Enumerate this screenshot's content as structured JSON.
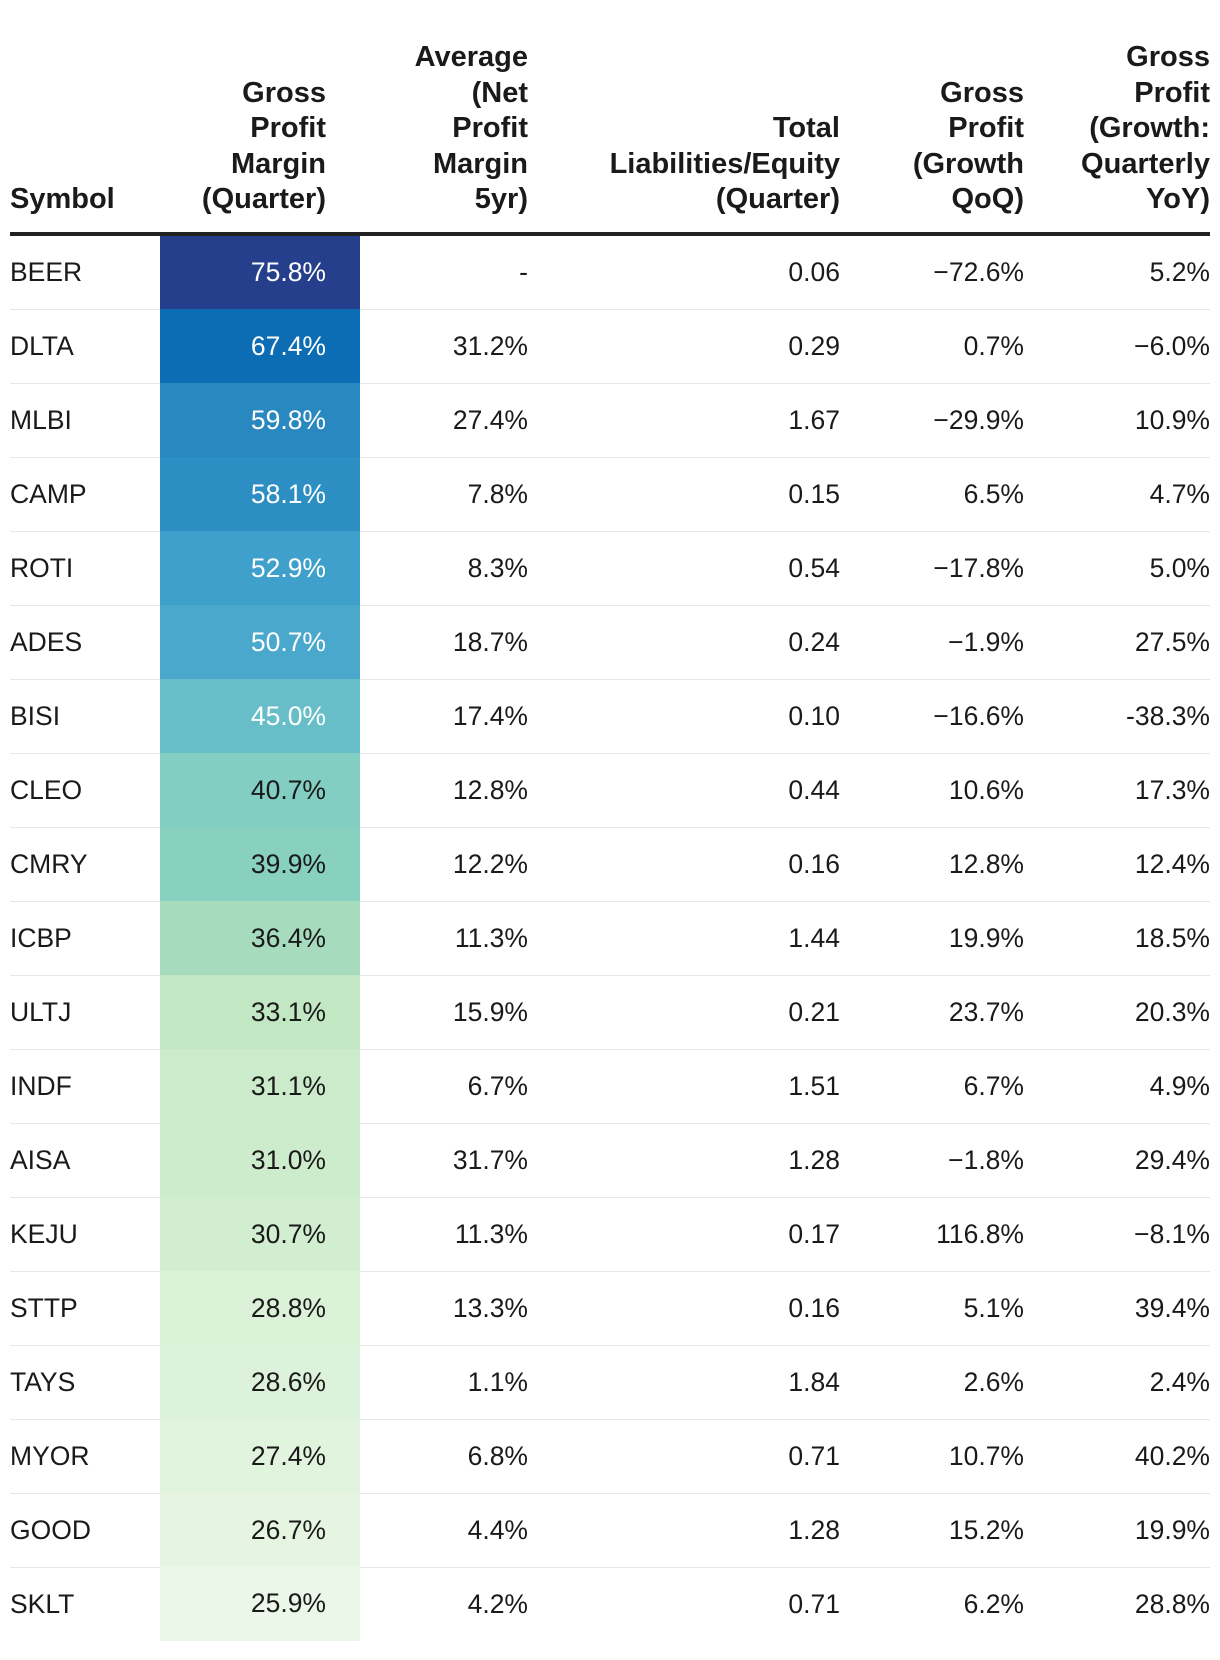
{
  "chart_data": {
    "type": "table",
    "columns": [
      {
        "key": "symbol",
        "label": "Symbol"
      },
      {
        "key": "gpm",
        "label": "Gross Profit Margin (Quarter)"
      },
      {
        "key": "avg_npm",
        "label": "Average (Net Profit Margin 5yr)"
      },
      {
        "key": "tle",
        "label": "Total Liabilities/Equity (Quarter)"
      },
      {
        "key": "gp_qoq",
        "label": "Gross Profit (Growth QoQ)"
      },
      {
        "key": "gp_yoy",
        "label": "Gross Profit (Growth: Quarterly YoY)"
      }
    ],
    "header_lines": [
      [
        "Symbol"
      ],
      [
        "Gross",
        "Profit",
        "Margin",
        "(Quarter)"
      ],
      [
        "Average",
        "(Net",
        "Profit",
        "Margin",
        "5yr)"
      ],
      [
        "Total",
        "Liabilities/Equity",
        "(Quarter)"
      ],
      [
        "Gross",
        "Profit",
        "(Growth",
        "QoQ)"
      ],
      [
        "Gross",
        "Profit",
        "(Growth:",
        "Quarterly",
        "YoY)"
      ]
    ],
    "heatmap_column": "gpm",
    "heatmap_colors": [
      "#253f8c",
      "#0c6cb4",
      "#2a88c1",
      "#2d8ec3",
      "#3fa1cb",
      "#4ba8cd",
      "#67bec8",
      "#82cec2",
      "#88d0c0",
      "#a6dcbd",
      "#c2e7c3",
      "#cbebca",
      "#cdeccc",
      "#d2eed0",
      "#dbf1d8",
      "#ddf2da",
      "#e1f4de",
      "#e5f5e2",
      "#ebf7e8"
    ],
    "rows": [
      {
        "symbol": "BEER",
        "gpm": "75.8%",
        "avg_npm": "-",
        "tle": "0.06",
        "gp_qoq": "−72.6%",
        "gp_yoy": "5.2%"
      },
      {
        "symbol": "DLTA",
        "gpm": "67.4%",
        "avg_npm": "31.2%",
        "tle": "0.29",
        "gp_qoq": "0.7%",
        "gp_yoy": "−6.0%"
      },
      {
        "symbol": "MLBI",
        "gpm": "59.8%",
        "avg_npm": "27.4%",
        "tle": "1.67",
        "gp_qoq": "−29.9%",
        "gp_yoy": "10.9%"
      },
      {
        "symbol": "CAMP",
        "gpm": "58.1%",
        "avg_npm": "7.8%",
        "tle": "0.15",
        "gp_qoq": "6.5%",
        "gp_yoy": "4.7%"
      },
      {
        "symbol": "ROTI",
        "gpm": "52.9%",
        "avg_npm": "8.3%",
        "tle": "0.54",
        "gp_qoq": "−17.8%",
        "gp_yoy": "5.0%"
      },
      {
        "symbol": "ADES",
        "gpm": "50.7%",
        "avg_npm": "18.7%",
        "tle": "0.24",
        "gp_qoq": "−1.9%",
        "gp_yoy": "27.5%"
      },
      {
        "symbol": "BISI",
        "gpm": "45.0%",
        "avg_npm": "17.4%",
        "tle": "0.10",
        "gp_qoq": "−16.6%",
        "gp_yoy": "-38.3%"
      },
      {
        "symbol": "CLEO",
        "gpm": "40.7%",
        "avg_npm": "12.8%",
        "tle": "0.44",
        "gp_qoq": "10.6%",
        "gp_yoy": "17.3%"
      },
      {
        "symbol": "CMRY",
        "gpm": "39.9%",
        "avg_npm": "12.2%",
        "tle": "0.16",
        "gp_qoq": "12.8%",
        "gp_yoy": "12.4%"
      },
      {
        "symbol": "ICBP",
        "gpm": "36.4%",
        "avg_npm": "11.3%",
        "tle": "1.44",
        "gp_qoq": "19.9%",
        "gp_yoy": "18.5%"
      },
      {
        "symbol": "ULTJ",
        "gpm": "33.1%",
        "avg_npm": "15.9%",
        "tle": "0.21",
        "gp_qoq": "23.7%",
        "gp_yoy": "20.3%"
      },
      {
        "symbol": "INDF",
        "gpm": "31.1%",
        "avg_npm": "6.7%",
        "tle": "1.51",
        "gp_qoq": "6.7%",
        "gp_yoy": "4.9%"
      },
      {
        "symbol": "AISA",
        "gpm": "31.0%",
        "avg_npm": "31.7%",
        "tle": "1.28",
        "gp_qoq": "−1.8%",
        "gp_yoy": "29.4%"
      },
      {
        "symbol": "KEJU",
        "gpm": "30.7%",
        "avg_npm": "11.3%",
        "tle": "0.17",
        "gp_qoq": "116.8%",
        "gp_yoy": "−8.1%"
      },
      {
        "symbol": "STTP",
        "gpm": "28.8%",
        "avg_npm": "13.3%",
        "tle": "0.16",
        "gp_qoq": "5.1%",
        "gp_yoy": "39.4%"
      },
      {
        "symbol": "TAYS",
        "gpm": "28.6%",
        "avg_npm": "1.1%",
        "tle": "1.84",
        "gp_qoq": "2.6%",
        "gp_yoy": "2.4%"
      },
      {
        "symbol": "MYOR",
        "gpm": "27.4%",
        "avg_npm": "6.8%",
        "tle": "0.71",
        "gp_qoq": "10.7%",
        "gp_yoy": "40.2%"
      },
      {
        "symbol": "GOOD",
        "gpm": "26.7%",
        "avg_npm": "4.4%",
        "tle": "1.28",
        "gp_qoq": "15.2%",
        "gp_yoy": "19.9%"
      },
      {
        "symbol": "SKLT",
        "gpm": "25.9%",
        "avg_npm": "4.2%",
        "tle": "0.71",
        "gp_qoq": "6.2%",
        "gp_yoy": "28.8%"
      }
    ]
  }
}
